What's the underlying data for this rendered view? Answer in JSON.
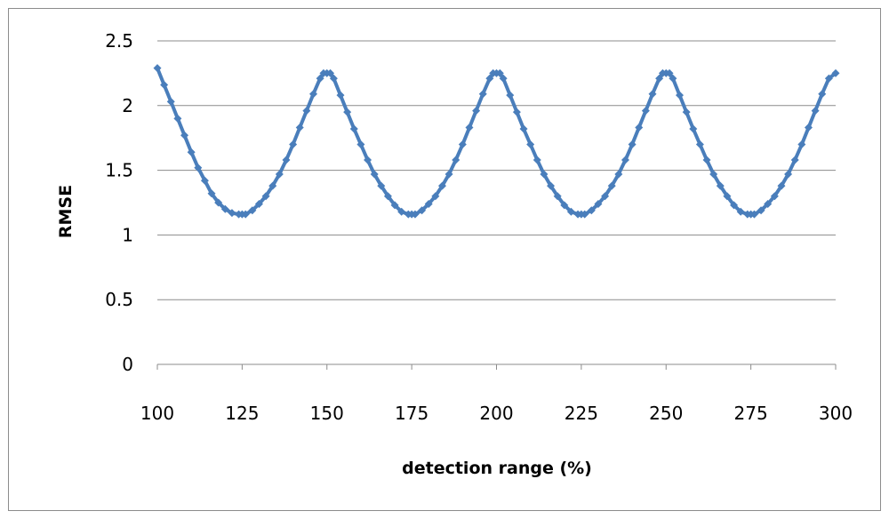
{
  "chart_data": {
    "type": "line",
    "title": "",
    "xlabel": "detection range (%)",
    "ylabel": "RMSE",
    "xlim": [
      100,
      300
    ],
    "ylim": [
      0,
      2.5
    ],
    "x_ticks": [
      100,
      125,
      150,
      175,
      200,
      225,
      250,
      275,
      300
    ],
    "y_ticks": [
      0,
      0.5,
      1,
      1.5,
      2,
      2.5
    ],
    "x_tick_labels": [
      "100",
      "125",
      "150",
      "175",
      "200",
      "225",
      "250",
      "275",
      "300"
    ],
    "y_tick_labels": [
      "0",
      "0.5",
      "1",
      "1.5",
      "2",
      "2.5"
    ],
    "grid": "horizontal",
    "legend": "none",
    "marker": "diamond",
    "series_color": "#4a7ebb",
    "series": [
      {
        "x": [
          100,
          102,
          104,
          106,
          108,
          110,
          112,
          114,
          116,
          118,
          120,
          122,
          124,
          125,
          126,
          128,
          130,
          132,
          134,
          136,
          138,
          140,
          142,
          144,
          146,
          148,
          149,
          150,
          151,
          152,
          154,
          156,
          158,
          160,
          162,
          164,
          166,
          168,
          170,
          172,
          174,
          175,
          176,
          178,
          180,
          182,
          184,
          186,
          188,
          190,
          192,
          194,
          196,
          198,
          199,
          200,
          201,
          202,
          204,
          206,
          208,
          210,
          212,
          214,
          216,
          218,
          220,
          222,
          224,
          225,
          226,
          228,
          230,
          232,
          234,
          236,
          238,
          240,
          242,
          244,
          246,
          248,
          249,
          250,
          251,
          252,
          254,
          256,
          258,
          260,
          262,
          264,
          266,
          268,
          270,
          272,
          274,
          275,
          276,
          278,
          280,
          282,
          284,
          286,
          288,
          290,
          292,
          294,
          296,
          298,
          300
        ],
        "y": [
          2.29,
          2.16,
          2.03,
          1.9,
          1.77,
          1.64,
          1.52,
          1.42,
          1.32,
          1.25,
          1.2,
          1.17,
          1.16,
          1.16,
          1.16,
          1.19,
          1.24,
          1.3,
          1.38,
          1.47,
          1.58,
          1.7,
          1.83,
          1.96,
          2.09,
          2.21,
          2.25,
          2.25,
          2.25,
          2.21,
          2.08,
          1.95,
          1.82,
          1.7,
          1.58,
          1.47,
          1.38,
          1.3,
          1.23,
          1.18,
          1.16,
          1.16,
          1.16,
          1.19,
          1.24,
          1.3,
          1.38,
          1.47,
          1.58,
          1.7,
          1.83,
          1.96,
          2.09,
          2.21,
          2.25,
          2.25,
          2.25,
          2.21,
          2.08,
          1.95,
          1.82,
          1.7,
          1.58,
          1.47,
          1.38,
          1.3,
          1.23,
          1.18,
          1.16,
          1.16,
          1.16,
          1.19,
          1.24,
          1.3,
          1.38,
          1.47,
          1.58,
          1.7,
          1.83,
          1.96,
          2.09,
          2.21,
          2.25,
          2.25,
          2.25,
          2.21,
          2.08,
          1.95,
          1.82,
          1.7,
          1.58,
          1.47,
          1.38,
          1.3,
          1.23,
          1.18,
          1.16,
          1.16,
          1.16,
          1.19,
          1.24,
          1.3,
          1.38,
          1.47,
          1.58,
          1.7,
          1.83,
          1.96,
          2.09,
          2.21,
          2.25
        ]
      }
    ]
  }
}
